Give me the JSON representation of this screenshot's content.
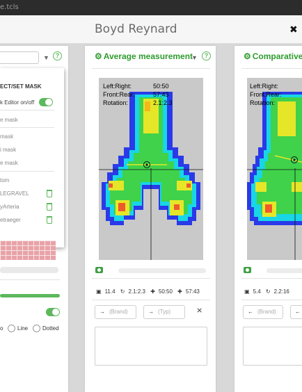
{
  "window": {
    "title": "e.tcls"
  },
  "header": {
    "user_name": "Boyd Reynard"
  },
  "left_panel": {
    "menu": {
      "heading": "ECT/SET MASK",
      "editor_toggle_label": "k Editor on/off",
      "editor_enabled": true,
      "items": [
        {
          "label": "e mask"
        },
        {
          "label": "mask"
        },
        {
          "label": "i mask"
        },
        {
          "label": "e mask"
        }
      ],
      "saved_heading": "tom",
      "saved_masks": [
        {
          "label": "LEGRAVEL"
        },
        {
          "label": "yArteria"
        },
        {
          "label": "etraeger"
        }
      ]
    },
    "line_style": {
      "enabled": true,
      "options": [
        {
          "label": "o"
        },
        {
          "label": "Line"
        },
        {
          "label": "Dotted"
        }
      ]
    }
  },
  "center_panel": {
    "title": "Average measurement",
    "overlay": {
      "left_right_label": "Left:Right:",
      "left_right_value": "50:50",
      "front_rear_label": "Front:Rear:",
      "front_rear_value": "57:43",
      "rotation_label": "Rotation:",
      "rotation_value": "2.1:2.3"
    },
    "stats": {
      "value": "11.4",
      "rotation": "2.1:2.3",
      "left_right": "50:50",
      "front_rear": "57:43"
    },
    "brand_placeholder": "(Brand)",
    "type_placeholder": "(Typ)"
  },
  "right_panel": {
    "title": "Comparative m",
    "overlay": {
      "left_right_label": "Left:Right:",
      "front_rear_label": "Front:Rear:",
      "rotation_label": "Rotation:"
    },
    "stats": {
      "value": "5.4",
      "rotation": "2.2:16"
    },
    "brand_placeholder": "(Brand)"
  },
  "icons": {
    "panel": "gear-icon",
    "help": "help-icon",
    "caret": "chevron-down-icon",
    "camera": "camera-icon",
    "arrow": "arrow-right-icon",
    "clear": "clear-filter-icon",
    "pin": "pin-icon",
    "trash": "trash-icon"
  },
  "colors": {
    "accent": "#2f9c2f",
    "toggle": "#5cb85c",
    "mask_grid": "#e8a3a8"
  }
}
